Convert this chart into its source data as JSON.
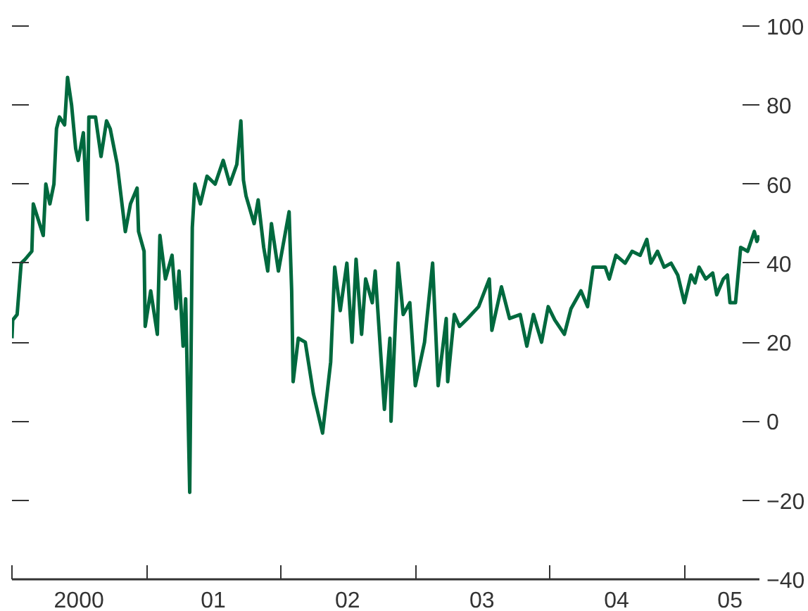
{
  "chart_data": {
    "type": "line",
    "x": [
      "2000-01-01",
      "2000-01-03",
      "2000-01-15",
      "2000-01-26",
      "2000-02-06",
      "2000-02-24",
      "2000-02-28",
      "2000-03-26",
      "2000-04-02",
      "2000-04-13",
      "2000-04-24",
      "2000-05-01",
      "2000-05-09",
      "2000-05-23",
      "2000-05-31",
      "2000-06-11",
      "2000-06-22",
      "2000-06-29",
      "2000-07-13",
      "2000-07-24",
      "2000-07-28",
      "2000-08-15",
      "2000-08-30",
      "2000-09-14",
      "2000-09-24",
      "2000-10-13",
      "2000-11-04",
      "2000-11-18",
      "2000-12-06",
      "2000-12-10",
      "2000-12-25",
      "2000-12-28",
      "2001-01-12",
      "2001-01-30",
      "2001-02-06",
      "2001-02-21",
      "2001-03-11",
      "2001-03-22",
      "2001-03-30",
      "2001-04-10",
      "2001-04-17",
      "2001-04-28",
      "2001-05-05",
      "2001-05-12",
      "2001-05-27",
      "2001-06-14",
      "2001-07-06",
      "2001-07-28",
      "2001-08-15",
      "2001-09-03",
      "2001-09-14",
      "2001-09-21",
      "2001-09-28",
      "2001-10-20",
      "2001-10-31",
      "2001-11-15",
      "2001-11-26",
      "2001-12-06",
      "2001-12-25",
      "2002-01-23",
      "2002-01-30",
      "2002-02-03",
      "2002-02-17",
      "2002-03-08",
      "2002-03-30",
      "2002-04-24",
      "2002-05-16",
      "2002-05-27",
      "2002-06-11",
      "2002-06-29",
      "2002-07-13",
      "2002-07-24",
      "2002-08-08",
      "2002-08-19",
      "2002-09-06",
      "2002-09-14",
      "2002-10-09",
      "2002-10-24",
      "2002-10-27",
      "2002-11-15",
      "2002-11-29",
      "2002-12-17",
      "2003-01-01",
      "2003-01-26",
      "2003-02-17",
      "2003-03-04",
      "2003-03-26",
      "2003-03-30",
      "2003-04-17",
      "2003-05-01",
      "2003-05-23",
      "2003-06-22",
      "2003-07-21",
      "2003-07-28",
      "2003-08-23",
      "2003-09-14",
      "2003-10-13",
      "2003-10-31",
      "2003-11-18",
      "2003-12-10",
      "2003-12-28",
      "2004-01-15",
      "2004-02-10",
      "2004-02-28",
      "2004-03-26",
      "2004-04-13",
      "2004-04-28",
      "2004-05-31",
      "2004-06-11",
      "2004-06-29",
      "2004-07-24",
      "2004-08-12",
      "2004-09-03",
      "2004-09-21",
      "2004-10-02",
      "2004-10-20",
      "2004-11-07",
      "2004-11-26",
      "2004-12-14",
      "2005-01-01",
      "2005-01-19",
      "2005-01-30",
      "2005-02-10",
      "2005-02-28",
      "2005-03-19",
      "2005-03-30",
      "2005-04-17",
      "2005-04-28",
      "2005-05-05",
      "2005-05-20",
      "2005-06-03",
      "2005-06-22",
      "2005-07-10",
      "2005-07-17",
      "2005-07-24"
    ],
    "series": [
      {
        "color": "#00693e",
        "values": [
          21,
          25.6,
          27,
          40,
          41,
          43,
          55,
          47,
          60,
          55,
          60,
          74,
          77,
          75,
          87,
          80,
          69,
          66,
          73,
          51,
          77,
          77,
          67,
          76,
          74,
          65,
          48,
          55,
          59,
          48,
          43,
          24,
          33,
          22,
          47,
          36,
          42,
          28.5,
          38,
          19,
          31,
          -18,
          49,
          60,
          55,
          62,
          60,
          66,
          60,
          65,
          76,
          61,
          57,
          50,
          56,
          44,
          38,
          50,
          38,
          53,
          33,
          10,
          21,
          20,
          7,
          -3,
          15,
          39,
          28,
          40,
          20,
          41,
          22,
          36,
          30,
          38,
          3,
          21,
          0,
          40,
          27,
          30,
          9,
          20,
          40,
          9,
          26,
          10,
          27,
          24,
          26,
          29,
          36,
          23,
          34,
          26,
          27,
          19,
          27,
          20,
          29,
          25.6,
          22,
          28.5,
          33,
          29,
          39,
          39,
          36,
          42,
          40,
          43,
          42,
          46,
          40,
          43,
          39,
          40,
          37,
          30,
          37,
          35,
          39,
          36,
          37.5,
          32,
          36,
          37,
          30,
          30,
          44,
          43,
          48,
          45.5,
          47
        ]
      }
    ],
    "xlim": [
      "2000-01-01",
      "2005-07-24"
    ],
    "ylim": [
      -40,
      100
    ],
    "xticks": [
      {
        "value": "2000-01-01",
        "label": null
      },
      {
        "value": "2001-01-01",
        "label": null
      },
      {
        "value": "2002-01-01",
        "label": null
      },
      {
        "value": "2003-01-01",
        "label": null
      },
      {
        "value": "2004-01-01",
        "label": null
      },
      {
        "value": "2005-01-01",
        "label": null
      },
      {
        "value": "2000-07-01",
        "label": "2000"
      },
      {
        "value": "2001-07-01",
        "label": "01"
      },
      {
        "value": "2002-07-01",
        "label": "02"
      },
      {
        "value": "2003-07-01",
        "label": "03"
      },
      {
        "value": "2004-07-01",
        "label": "04"
      },
      {
        "value": "2005-05-05",
        "label": "05"
      }
    ],
    "yticks": [
      -40,
      -20,
      0,
      20,
      40,
      60,
      80,
      100
    ],
    "grid": false,
    "line_style": "solid",
    "marker": "none"
  }
}
